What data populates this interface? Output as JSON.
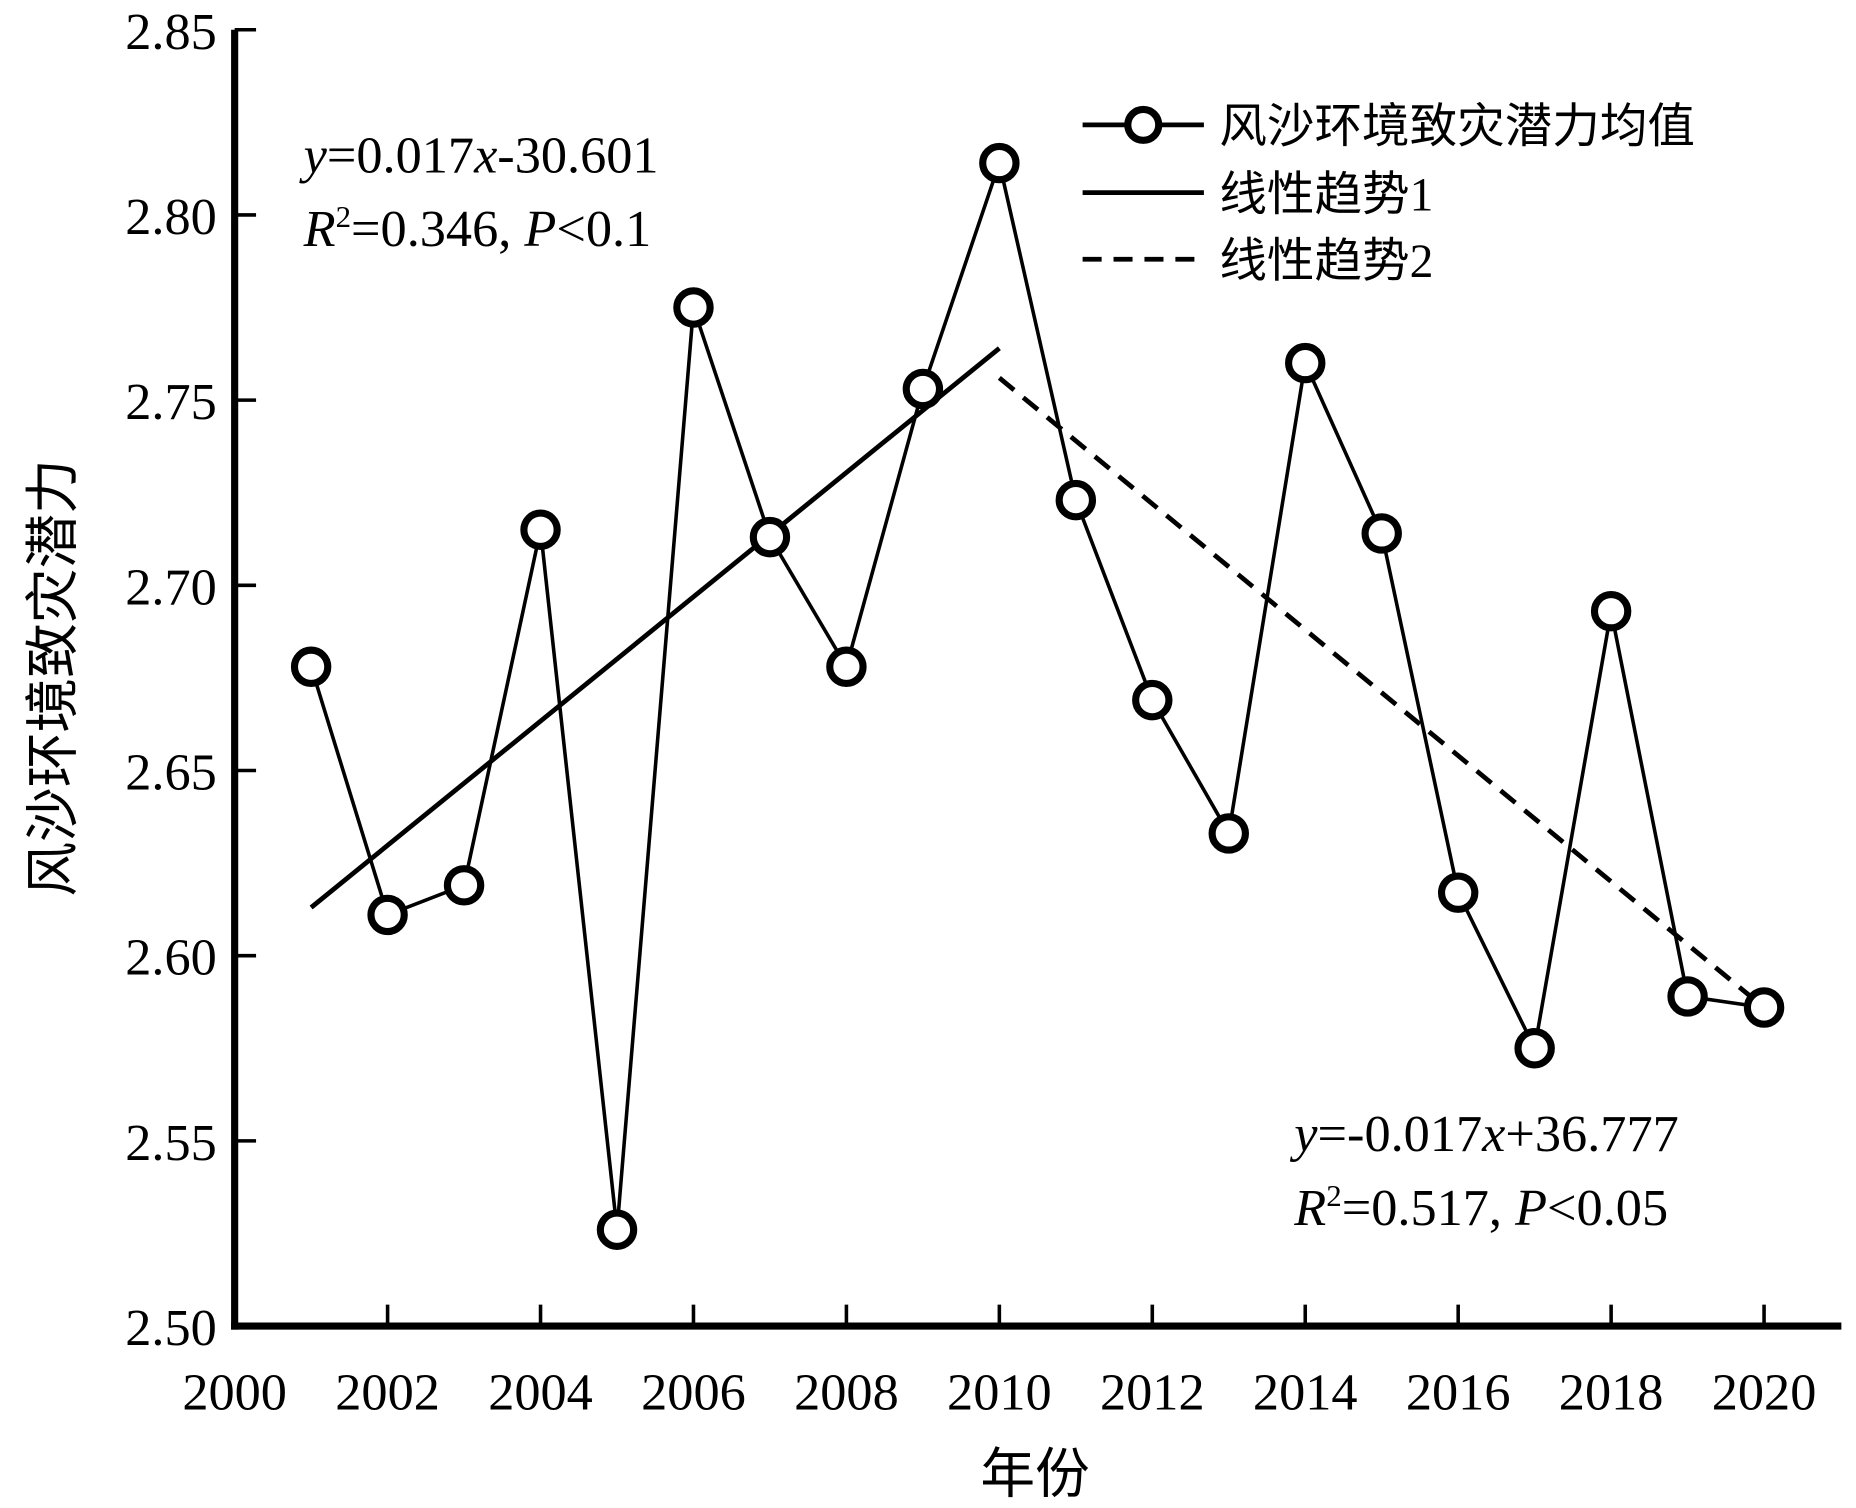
{
  "chart_data": {
    "type": "line",
    "title": "",
    "xlabel": "年份",
    "ylabel": "风沙环境致灾潜力",
    "xlim": [
      2000,
      2020
    ],
    "ylim": [
      2.5,
      2.85
    ],
    "x_ticks": [
      "2000",
      "2002",
      "2004",
      "2006",
      "2008",
      "2010",
      "2012",
      "2014",
      "2016",
      "2018",
      "2020"
    ],
    "y_ticks": [
      "2.50",
      "2.55",
      "2.60",
      "2.65",
      "2.70",
      "2.75",
      "2.80",
      "2.85"
    ],
    "legend_position": "top-right",
    "series": [
      {
        "name": "风沙环境致灾潜力均值",
        "style": "line-circle",
        "x": [
          2001,
          2002,
          2003,
          2004,
          2005,
          2006,
          2007,
          2008,
          2009,
          2010,
          2011,
          2012,
          2013,
          2014,
          2015,
          2016,
          2017,
          2018,
          2019,
          2020
        ],
        "values": [
          2.678,
          2.611,
          2.619,
          2.715,
          2.526,
          2.775,
          2.713,
          2.678,
          2.753,
          2.814,
          2.723,
          2.669,
          2.633,
          2.76,
          2.714,
          2.617,
          2.575,
          2.693,
          2.589,
          2.586
        ]
      },
      {
        "name": "线性趋势1",
        "style": "solid",
        "x": [
          2001,
          2010
        ],
        "values": [
          2.613,
          2.764
        ]
      },
      {
        "name": "线性趋势2",
        "style": "dashed",
        "x": [
          2010,
          2020
        ],
        "values": [
          2.756,
          2.586
        ]
      }
    ],
    "annotations": [
      {
        "line1": [
          "y",
          "=0.017",
          "x",
          "-30.601"
        ],
        "line2": [
          "R",
          "2",
          "=0.346, ",
          "P",
          "<0.1"
        ]
      },
      {
        "line1": [
          "y",
          "=-0.017",
          "x",
          "+36.777"
        ],
        "line2": [
          "R",
          "2",
          "=0.517, ",
          "P",
          "<0.05"
        ]
      }
    ]
  }
}
